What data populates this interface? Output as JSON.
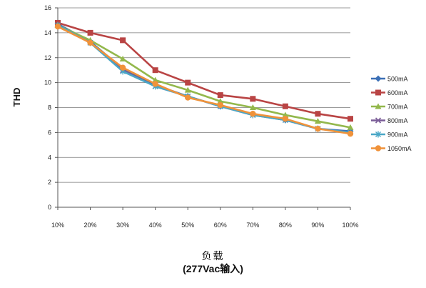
{
  "chart_data": {
    "type": "line",
    "title": "",
    "ylabel": "THD",
    "xlabel_line1": "负载",
    "xlabel_line2": "(277Vac输入)",
    "ylim": [
      0,
      16
    ],
    "yticks": [
      "0",
      "2",
      "4",
      "6",
      "8",
      "10",
      "12",
      "14",
      "16"
    ],
    "grid": "horizontal",
    "legend_position": "right",
    "categories": [
      "10%",
      "20%",
      "30%",
      "40%",
      "50%",
      "60%",
      "70%",
      "80%",
      "90%",
      "100%"
    ],
    "series": [
      {
        "name": "500mA",
        "color": "#3b6fb6",
        "marker": "diamond",
        "values": [
          14.7,
          13.3,
          11.1,
          9.8,
          8.9,
          8.1,
          7.5,
          7.0,
          6.3,
          6.1
        ]
      },
      {
        "name": "600mA",
        "color": "#b94444",
        "marker": "square",
        "values": [
          14.8,
          14.0,
          13.4,
          11.0,
          10.0,
          9.0,
          8.7,
          8.1,
          7.5,
          7.1
        ]
      },
      {
        "name": "700mA",
        "color": "#93b84c",
        "marker": "triangle",
        "values": [
          14.6,
          13.4,
          11.9,
          10.2,
          9.4,
          8.5,
          8.0,
          7.4,
          6.9,
          6.4
        ]
      },
      {
        "name": "800mA",
        "color": "#7a5c97",
        "marker": "x",
        "values": [
          14.6,
          13.2,
          11.0,
          9.7,
          8.9,
          8.1,
          7.4,
          7.0,
          6.3,
          6.0
        ]
      },
      {
        "name": "900mA",
        "color": "#4aa7c6",
        "marker": "star",
        "values": [
          14.6,
          13.2,
          10.9,
          9.7,
          8.9,
          8.1,
          7.4,
          7.0,
          6.3,
          6.0
        ]
      },
      {
        "name": "1050mA",
        "color": "#f0923a",
        "marker": "circle",
        "values": [
          14.5,
          13.2,
          11.2,
          9.9,
          8.8,
          8.2,
          7.5,
          7.1,
          6.3,
          5.9
        ]
      }
    ]
  }
}
